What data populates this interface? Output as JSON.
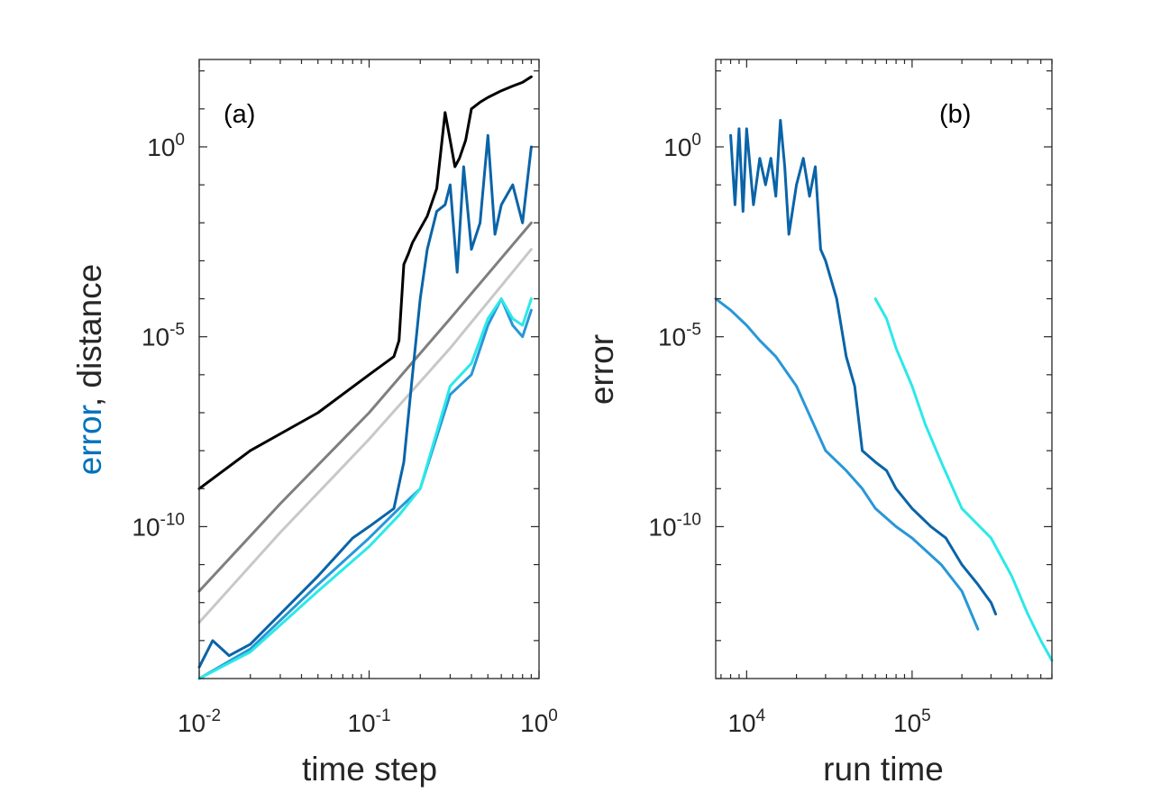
{
  "chart_data": [
    {
      "panel": "(a)",
      "type": "line",
      "xscale": "log",
      "yscale": "log",
      "xlim": [
        0.01,
        1
      ],
      "ylim": [
        1e-14,
        200.0
      ],
      "xlabel": "time step",
      "ylabel_parts": [
        {
          "text": "error",
          "color": "#0072bd"
        },
        {
          "text": ", distance",
          "color": "#262626"
        }
      ],
      "x_ticks": [
        {
          "base": "10",
          "exp": "-2",
          "value": 0.01
        },
        {
          "base": "10",
          "exp": "-1",
          "value": 0.1
        },
        {
          "base": "10",
          "exp": "0",
          "value": 1
        }
      ],
      "y_ticks": [
        {
          "base": "10",
          "exp": "-10",
          "value": 1e-10
        },
        {
          "base": "10",
          "exp": "-5",
          "value": 1e-05
        },
        {
          "base": "10",
          "exp": "0",
          "value": 1
        }
      ],
      "series": [
        {
          "name": "distance (black)",
          "color": "#000000",
          "x": [
            0.01,
            0.02,
            0.05,
            0.1,
            0.14,
            0.15,
            0.16,
            0.17,
            0.18,
            0.2,
            0.22,
            0.25,
            0.28,
            0.3,
            0.32,
            0.34,
            0.37,
            0.4,
            0.45,
            0.5,
            0.6,
            0.7,
            0.8,
            0.9
          ],
          "y": [
            1e-09,
            1e-08,
            1e-07,
            1e-06,
            3e-06,
            8e-06,
            0.0008,
            0.0015,
            0.003,
            0.007,
            0.015,
            0.08,
            8,
            1.5,
            0.3,
            0.5,
            1.5,
            10,
            15,
            20,
            30,
            40,
            50,
            70
          ]
        },
        {
          "name": "distance (gray)",
          "color": "#7f7f7f",
          "x": [
            0.01,
            0.03,
            0.1,
            0.3,
            0.9
          ],
          "y": [
            2e-12,
            4e-10,
            1e-07,
            3e-05,
            0.01
          ]
        },
        {
          "name": "distance (light gray)",
          "color": "#c8c8c8",
          "x": [
            0.01,
            0.03,
            0.1,
            0.3,
            0.9
          ],
          "y": [
            3e-13,
            7e-11,
            2e-08,
            5e-06,
            0.002
          ]
        },
        {
          "name": "error (dark blue)",
          "color": "#0a64a8",
          "x": [
            0.01,
            0.012,
            0.015,
            0.02,
            0.03,
            0.05,
            0.08,
            0.1,
            0.14,
            0.16,
            0.18,
            0.2,
            0.22,
            0.25,
            0.28,
            0.3,
            0.33,
            0.36,
            0.4,
            0.45,
            0.5,
            0.55,
            0.6,
            0.7,
            0.8,
            0.9
          ],
          "y": [
            2e-14,
            1e-13,
            4e-14,
            8e-14,
            5e-13,
            5e-12,
            5e-11,
            1e-10,
            3e-10,
            5e-09,
            1e-06,
            0.0001,
            0.002,
            0.02,
            0.03,
            0.1,
            0.0005,
            0.3,
            0.002,
            0.01,
            2,
            0.005,
            0.03,
            0.1,
            0.01,
            1
          ]
        },
        {
          "name": "error (blue)",
          "color": "#2897d8",
          "x": [
            0.01,
            0.02,
            0.05,
            0.1,
            0.15,
            0.2,
            0.3,
            0.4,
            0.5,
            0.6,
            0.7,
            0.8,
            0.9
          ],
          "y": [
            1e-14,
            6e-14,
            3e-12,
            5e-11,
            3e-10,
            1e-09,
            3e-07,
            1e-06,
            2e-05,
            0.0001,
            2e-05,
            1e-05,
            5e-05
          ]
        },
        {
          "name": "error (cyan)",
          "color": "#2de8e8",
          "x": [
            0.01,
            0.02,
            0.05,
            0.1,
            0.15,
            0.2,
            0.3,
            0.4,
            0.5,
            0.6,
            0.7,
            0.8,
            0.9
          ],
          "y": [
            1e-14,
            5e-14,
            2e-12,
            3e-11,
            2e-10,
            1e-09,
            5e-07,
            2e-06,
            3e-05,
            0.0001,
            3e-05,
            2e-05,
            0.0001
          ]
        }
      ]
    },
    {
      "panel": "(b)",
      "type": "line",
      "xscale": "log",
      "yscale": "log",
      "xlim": [
        6500,
        700000
      ],
      "ylim": [
        1e-14,
        200.0
      ],
      "xlabel": "run time",
      "ylabel_parts": [
        {
          "text": "error",
          "color": "#0072bd"
        }
      ],
      "x_ticks": [
        {
          "base": "10",
          "exp": "4",
          "value": 10000
        },
        {
          "base": "10",
          "exp": "5",
          "value": 100000
        }
      ],
      "y_ticks": [
        {
          "base": "10",
          "exp": "-10",
          "value": 1e-10
        },
        {
          "base": "10",
          "exp": "-5",
          "value": 1e-05
        },
        {
          "base": "10",
          "exp": "0",
          "value": 1
        }
      ],
      "series": [
        {
          "name": "error (dark blue)",
          "color": "#0a64a8",
          "x": [
            8000,
            8500,
            9000,
            9500,
            10000,
            11000,
            12000,
            13000,
            14000,
            15000,
            16000,
            17000,
            18000,
            20000,
            22000,
            24000,
            26000,
            28000,
            30000,
            35000,
            40000,
            45000,
            50000,
            60000,
            70000,
            80000,
            100000,
            130000,
            160000,
            200000,
            250000,
            300000,
            320000
          ],
          "y": [
            2,
            0.03,
            3,
            0.02,
            3,
            0.03,
            0.5,
            0.1,
            0.5,
            0.05,
            5,
            0.3,
            0.005,
            0.1,
            0.5,
            0.05,
            0.3,
            0.002,
            0.001,
            0.0001,
            3e-06,
            5e-07,
            1e-08,
            5e-09,
            3e-09,
            1e-09,
            3e-10,
            1e-10,
            5e-11,
            1e-11,
            3e-12,
            1e-12,
            5e-13
          ]
        },
        {
          "name": "error (blue)",
          "color": "#2897d8",
          "x": [
            6500,
            8000,
            10000,
            12000,
            15000,
            20000,
            30000,
            40000,
            50000,
            60000,
            80000,
            100000,
            150000,
            200000,
            250000
          ],
          "y": [
            0.0001,
            5e-05,
            2e-05,
            8e-06,
            3e-06,
            5e-07,
            1e-08,
            3e-09,
            1e-09,
            3e-10,
            1e-10,
            5e-11,
            1e-11,
            2e-12,
            2e-13
          ]
        },
        {
          "name": "error (cyan)",
          "color": "#2de8e8",
          "x": [
            60000,
            70000,
            80000,
            100000,
            120000,
            150000,
            200000,
            300000,
            400000,
            500000,
            600000,
            700000
          ],
          "y": [
            0.0001,
            3e-05,
            5e-06,
            5e-07,
            5e-08,
            5e-09,
            3e-10,
            5e-11,
            5e-12,
            5e-13,
            1e-13,
            3e-14
          ]
        }
      ]
    }
  ]
}
